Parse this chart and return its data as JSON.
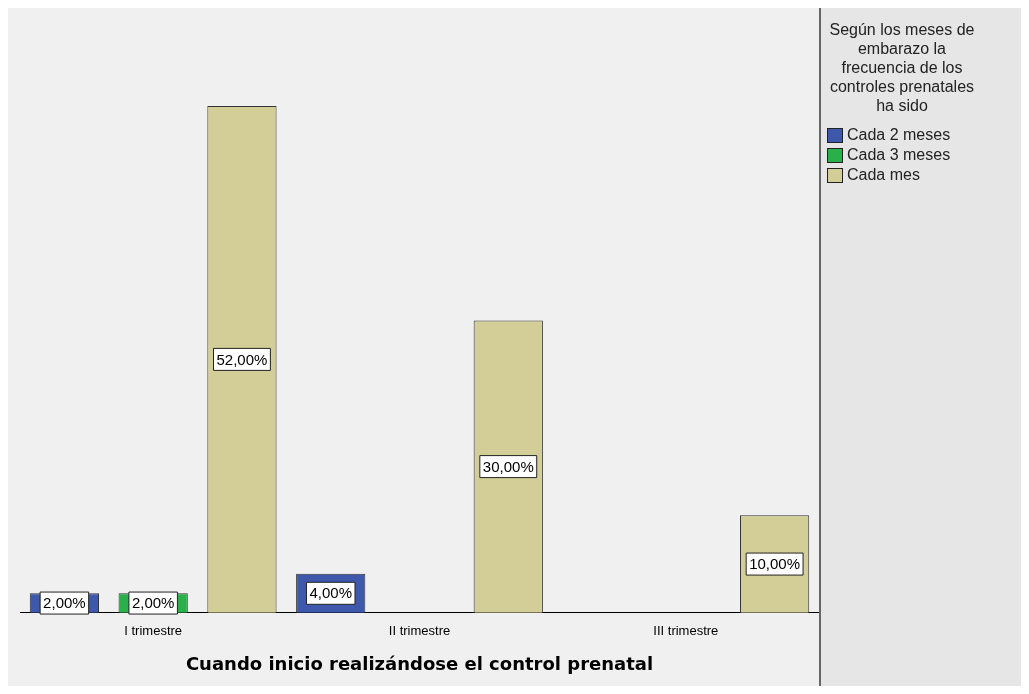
{
  "chart_data": {
    "type": "bar",
    "xlabel": "Cuando inicio realizándose el control prenatal",
    "legend_title": "Según los meses de embarazo la frecuencia de los controles prenatales ha sido",
    "legend": "right",
    "categories": [
      "I trimestre",
      "II trimestre",
      "III trimestre"
    ],
    "series": [
      {
        "name": "Cada 2 meses",
        "color": "#3e58ac",
        "values": [
          2,
          4,
          null
        ],
        "value_labels": [
          "2,00%",
          "4,00%",
          null
        ]
      },
      {
        "name": "Cada 3 meses",
        "color": "#2ab04a",
        "values": [
          2,
          null,
          null
        ],
        "value_labels": [
          "2,00%",
          null,
          null
        ]
      },
      {
        "name": "Cada mes",
        "color": "#d3ce97",
        "values": [
          52,
          30,
          10
        ],
        "value_labels": [
          "52,00%",
          "30,00%",
          "10,00%"
        ]
      }
    ]
  }
}
